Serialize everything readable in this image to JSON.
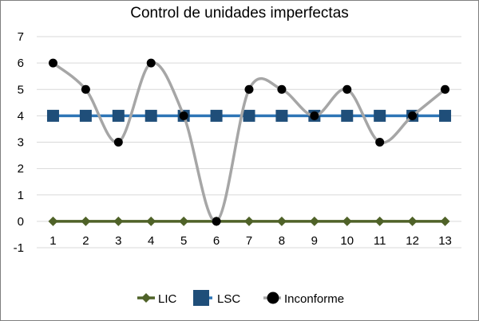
{
  "chart_data": {
    "type": "line",
    "title": "Control de unidades imperfectas",
    "xlabel": "",
    "ylabel": "",
    "x": [
      1,
      2,
      3,
      4,
      5,
      6,
      7,
      8,
      9,
      10,
      11,
      12,
      13
    ],
    "x_tick_labels": [
      "1",
      "2",
      "3",
      "4",
      "5",
      "6",
      "7",
      "8",
      "9",
      "10",
      "11",
      "12",
      "13"
    ],
    "y_tick_labels": [
      "7",
      "6",
      "5",
      "4",
      "3",
      "2",
      "1",
      "0",
      "-1"
    ],
    "ylim": [
      -1,
      7
    ],
    "grid": true,
    "legend_position": "bottom",
    "series": [
      {
        "name": "LIC",
        "values": [
          0,
          0,
          0,
          0,
          0,
          0,
          0,
          0,
          0,
          0,
          0,
          0,
          0
        ],
        "color": "#4f6228",
        "marker": "diamond",
        "smooth": false
      },
      {
        "name": "LSC",
        "values": [
          4,
          4,
          4,
          4,
          4,
          4,
          4,
          4,
          4,
          4,
          4,
          4,
          4
        ],
        "color": "#2e75b6",
        "marker_color": "#1f4e79",
        "marker": "square",
        "smooth": false
      },
      {
        "name": "Inconforme",
        "values": [
          6,
          5,
          3,
          6,
          4,
          0,
          5,
          5,
          4,
          5,
          3,
          4,
          5
        ],
        "color": "#a6a6a6",
        "marker_color": "#000000",
        "marker": "circle",
        "smooth": true
      }
    ]
  }
}
